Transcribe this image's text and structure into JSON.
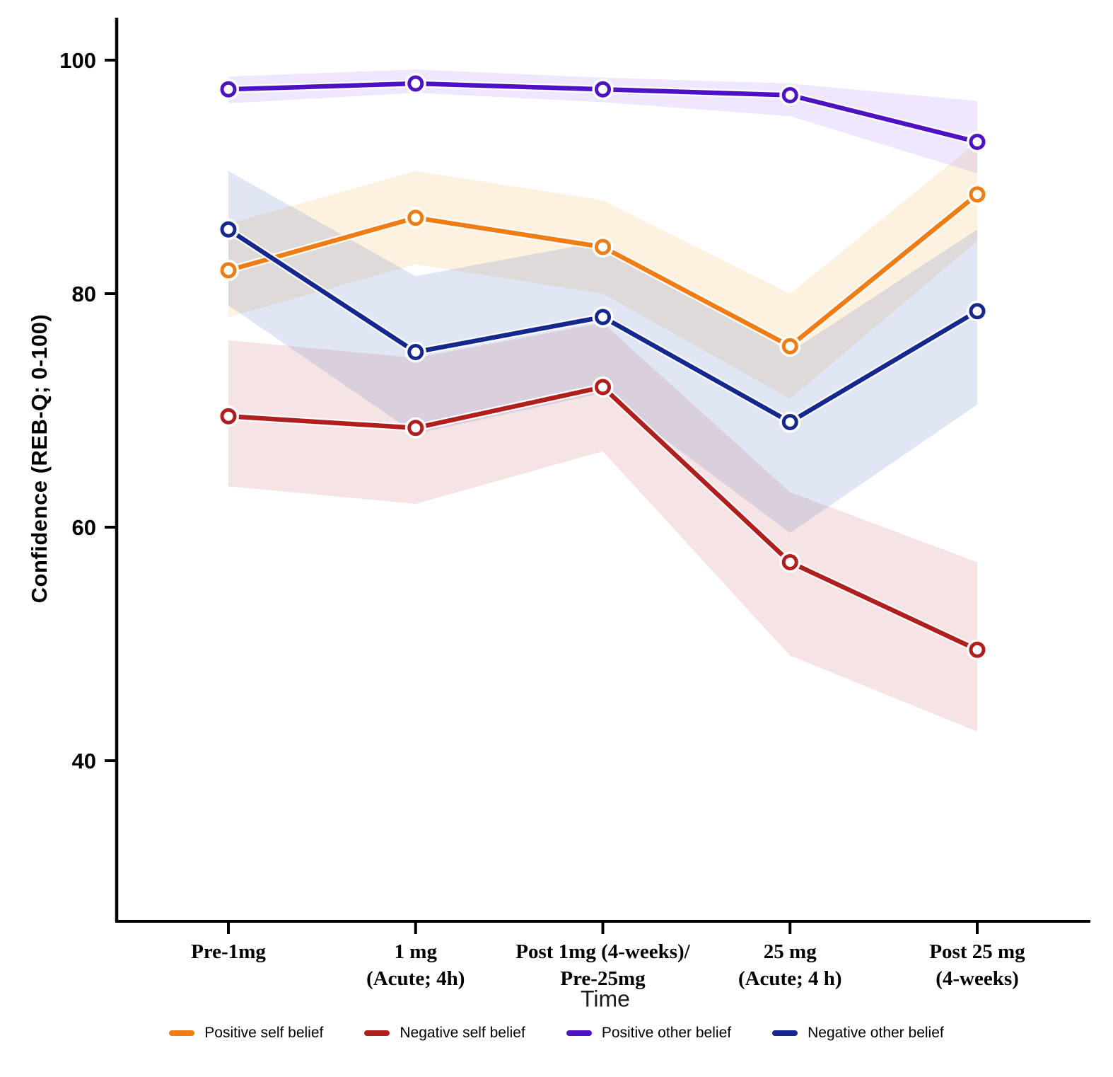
{
  "chart_data": {
    "type": "line",
    "title": "",
    "xlabel": "Time",
    "ylabel": "Confidence (REB-Q; 0-100)",
    "ylim": [
      30,
      103
    ],
    "yticks": [
      100,
      80,
      60,
      40
    ],
    "grid": false,
    "legend_position": "bottom",
    "categories": [
      "Pre-1mg",
      "1 mg (Acute; 4h)",
      "Post 1mg (4-weeks)/ Pre-25mg",
      "25 mg (Acute; 4 h)",
      "Post 25 mg (4-weeks)"
    ],
    "category_lines": [
      [
        "Pre-1mg"
      ],
      [
        "1 mg",
        "(Acute; 4h)"
      ],
      [
        "Post 1mg (4-weeks)/",
        "Pre-25mg"
      ],
      [
        "25 mg",
        "(Acute; 4 h)"
      ],
      [
        "Post 25 mg",
        "(4-weeks)"
      ]
    ],
    "series": [
      {
        "name": "Positive self belief",
        "color": "#F07D13",
        "band_color": "#F5A93F",
        "band_opacity": 0.16,
        "values": [
          82,
          86.5,
          84,
          75.5,
          88.5
        ],
        "upper": [
          86,
          90.5,
          88,
          80,
          93
        ],
        "lower": [
          78,
          82.5,
          80,
          71,
          84.5
        ]
      },
      {
        "name": "Negative self belief",
        "color": "#B01E1E",
        "band_color": "#C4504F",
        "band_opacity": 0.16,
        "values": [
          69.5,
          68.5,
          72,
          57,
          49.5
        ],
        "upper": [
          76,
          74.5,
          77.5,
          63,
          57
        ],
        "lower": [
          63.5,
          62,
          66.5,
          49,
          42.5
        ]
      },
      {
        "name": "Positive other belief",
        "color": "#4E11C4",
        "band_color": "#8B5CF6",
        "band_opacity": 0.15,
        "values": [
          97.5,
          98,
          97.5,
          97,
          93
        ],
        "upper": [
          98.6,
          99.2,
          98.5,
          98,
          96.5
        ],
        "lower": [
          96.3,
          97.2,
          96.4,
          95.2,
          90.3
        ]
      },
      {
        "name": "Negative other belief",
        "color": "#14288F",
        "band_color": "#5B74C4",
        "band_opacity": 0.18,
        "values": [
          85.5,
          75,
          78,
          69,
          78.5
        ],
        "upper": [
          90.5,
          81.5,
          84.5,
          75,
          85.5
        ],
        "lower": [
          79,
          68,
          71.5,
          59.5,
          70.5
        ]
      }
    ]
  }
}
